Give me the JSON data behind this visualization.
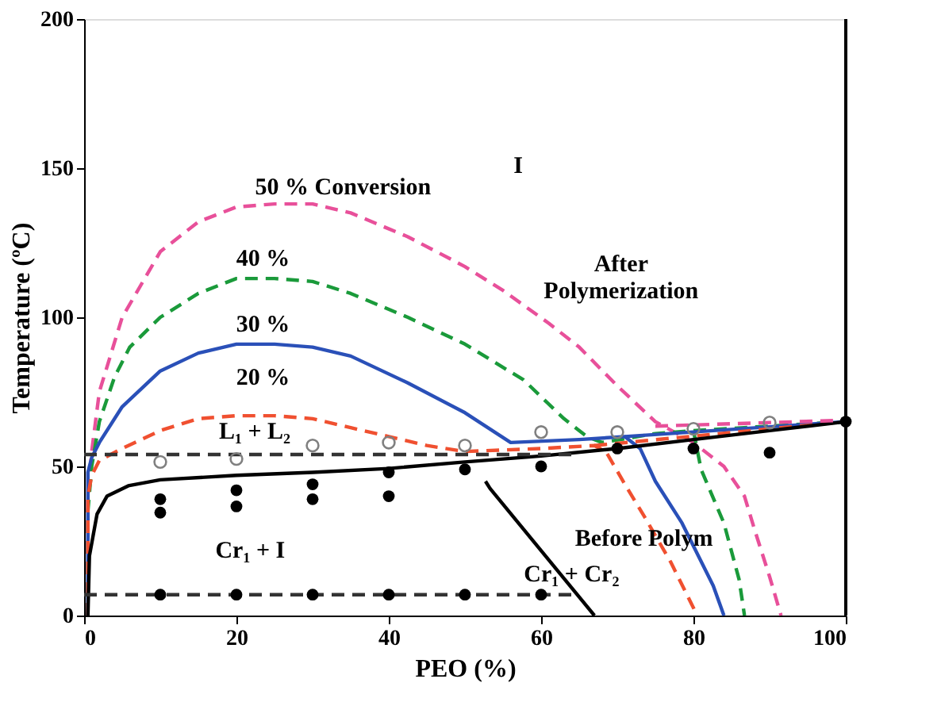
{
  "chart_data": {
    "type": "line",
    "xlabel": "PEO (%)",
    "ylabel": "Temperature (ºC)",
    "xlim": [
      0,
      100
    ],
    "xticks": [
      0,
      20,
      40,
      60,
      80,
      100
    ],
    "ylim": [
      0,
      200
    ],
    "yticks": [
      0,
      50,
      100,
      150,
      200
    ],
    "grid": false,
    "series": [
      {
        "color": "#e8509a",
        "line_style": "dashed",
        "x": [
          0.5,
          0.5,
          1,
          2,
          5,
          10,
          15,
          20,
          25,
          30,
          35,
          42.5,
          50,
          55,
          61,
          65,
          70,
          75,
          80,
          84,
          86.7,
          88,
          90,
          91.5
        ],
        "values": [
          0,
          40,
          55,
          75,
          100,
          122,
          132,
          137,
          138,
          138,
          135,
          127,
          117,
          109,
          98,
          90,
          77,
          65,
          58,
          50,
          40,
          29,
          13,
          0
        ]
      },
      {
        "color": "#1a9a3a",
        "line_style": "dashed",
        "x": [
          0.5,
          0.5,
          1,
          2,
          4,
          6,
          10,
          15,
          20,
          25,
          30,
          35,
          42.5,
          50,
          57.7,
          63,
          66,
          68,
          75,
          80,
          81,
          84,
          86,
          86.7
        ],
        "values": [
          0,
          35,
          50,
          65,
          80,
          90,
          100,
          108,
          113,
          113,
          112,
          108,
          100,
          91,
          79,
          66,
          60,
          58,
          61,
          62,
          49,
          31,
          12,
          0
        ]
      },
      {
        "color": "#1a9a3a",
        "line_style": "dashed",
        "x": [
          80,
          100
        ],
        "values": [
          62,
          65
        ]
      },
      {
        "color": "#2a50b8",
        "line_style": "solid",
        "x": [
          0.5,
          0.5,
          1,
          2,
          5,
          10,
          15,
          20,
          25,
          30,
          35,
          42.5,
          50,
          56,
          65,
          71,
          73,
          75,
          78.5,
          82.6,
          84
        ],
        "values": [
          0,
          48,
          53,
          58,
          70,
          82,
          88,
          91,
          91,
          90,
          87,
          78,
          68,
          58,
          59,
          60,
          56,
          45,
          31,
          10,
          0
        ]
      },
      {
        "color": "#2a50b8",
        "line_style": "solid",
        "x": [
          71,
          100
        ],
        "values": [
          60,
          65
        ]
      },
      {
        "color": "#f05030",
        "line_style": "dashed",
        "x": [
          0.5,
          0.5,
          1,
          2,
          5,
          10,
          15,
          20,
          25,
          30,
          35,
          40,
          45,
          50,
          60,
          67,
          68.5,
          71,
          73.6,
          77,
          80.5
        ],
        "values": [
          0,
          40,
          47,
          52,
          56,
          62,
          66,
          67,
          67,
          66,
          63,
          60,
          57,
          55,
          56,
          57,
          55,
          44,
          33,
          18,
          0
        ]
      },
      {
        "color": "#f05030",
        "line_style": "dashed",
        "x": [
          67,
          100
        ],
        "values": [
          57,
          65
        ]
      },
      {
        "color": "#000000",
        "line_style": "solid",
        "x": [
          0.5,
          0.7,
          1.7,
          3,
          5.8,
          10,
          20,
          30,
          40,
          50,
          60,
          70,
          80,
          90,
          100
        ],
        "values": [
          0,
          20,
          34,
          40,
          43.5,
          45.5,
          47,
          48,
          49.3,
          51.5,
          53.5,
          56,
          59,
          62,
          65
        ]
      },
      {
        "color": "#000000",
        "line_style": "solid",
        "x": [
          52.7,
          53.3,
          67
        ],
        "values": [
          45,
          42.6,
          0
        ]
      },
      {
        "color": "#333333",
        "line_style": "dashed",
        "x": [
          0,
          65
        ],
        "values": [
          54,
          54
        ]
      },
      {
        "color": "#333333",
        "line_style": "dashed",
        "x": [
          0,
          65
        ],
        "values": [
          7,
          7
        ]
      },
      {
        "color": "#e8509a",
        "line_style": "dashed",
        "x": [
          75,
          100
        ],
        "values": [
          63.5,
          65.5
        ]
      },
      {
        "type": "scatter",
        "color": "#808080",
        "marker": "circle",
        "x": [
          10,
          20,
          30,
          40,
          50,
          60,
          70,
          80,
          90
        ],
        "values": [
          51.5,
          52.5,
          57,
          58,
          57,
          61.5,
          61.5,
          62.6,
          64.7
        ]
      },
      {
        "type": "scatter",
        "color": "#000000",
        "marker": "circle",
        "x": [
          10,
          10,
          20,
          20,
          30,
          30,
          40,
          40,
          50,
          60,
          70,
          80,
          90,
          100
        ],
        "values": [
          39,
          34.5,
          42,
          36.6,
          44,
          39,
          48,
          40,
          49,
          50,
          56,
          56,
          54.6,
          65
        ]
      },
      {
        "type": "scatter",
        "color": "#000000",
        "marker": "circle",
        "x": [
          10,
          20,
          30,
          40,
          50,
          60
        ],
        "values": [
          7,
          7,
          7,
          7,
          7,
          7
        ]
      }
    ],
    "ref_lines": [
      {
        "axis": "x",
        "value": 100,
        "color": "#000000",
        "line_style": "solid"
      }
    ],
    "annotations": [
      "I",
      "50 % Conversion",
      "40 %",
      "30 %",
      "20 %",
      "L₁ + L₂",
      "Cr₁ + I",
      "Cr₁ + Cr₂",
      "After\nPolymerization",
      "Before Polym"
    ]
  }
}
